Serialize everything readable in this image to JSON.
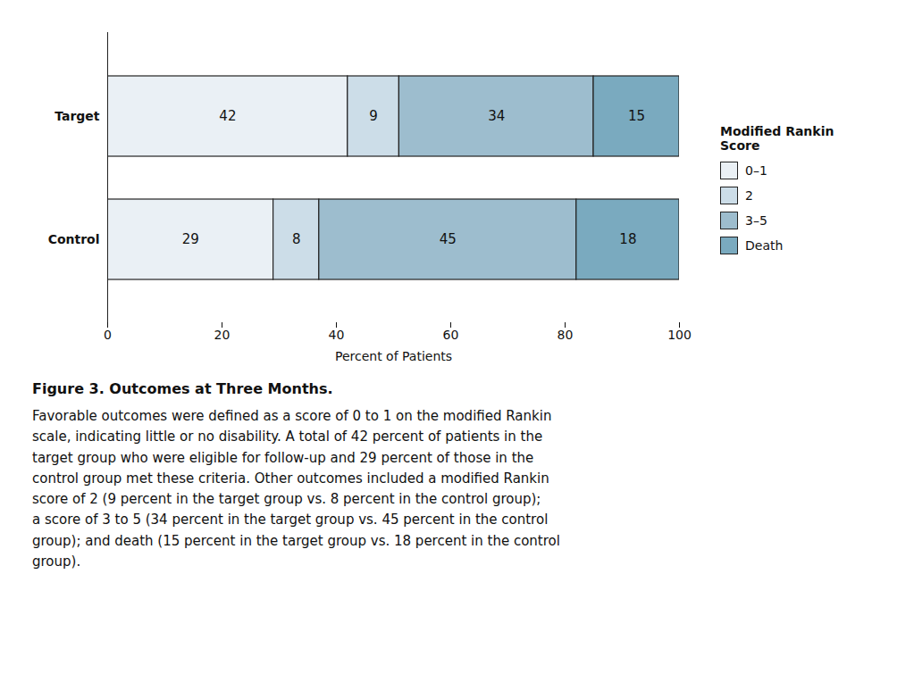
{
  "chart_data": {
    "type": "bar",
    "orientation": "horizontal",
    "stacked": true,
    "data_labels": true,
    "grid": false,
    "legend": "right",
    "legend_title": "Modified Rankin Score",
    "title": "Figure 3. Outcomes at Three Months.",
    "caption": "Favorable outcomes were defined as a score of 0 to 1 on the modified Rankin\nscale, indicating little or no disability. A total of 42 percent of patients in the\ntarget group who were eligible for follow-up and 29 percent of those in the\ncontrol group met these criteria. Other outcomes included a modified Rankin\nscore of 2 (9 percent in the target group vs. 8 percent in the control group);\na score of 3 to 5 (34 percent in the target group vs. 45 percent in the control\ngroup); and death (15 percent in the target group vs. 18 percent in the control\ngroup).",
    "categories": [
      "Target",
      "Control"
    ],
    "series": [
      {
        "name": "0–1",
        "color": "#eaf0f5",
        "values": [
          42,
          29
        ]
      },
      {
        "name": "2",
        "color": "#ccdde8",
        "values": [
          9,
          8
        ]
      },
      {
        "name": "3–5",
        "color": "#9dbdce",
        "values": [
          34,
          45
        ]
      },
      {
        "name": "Death",
        "color": "#7aaabf",
        "values": [
          15,
          18
        ]
      }
    ],
    "xlabel": "Percent of Patients",
    "xlim": [
      0,
      100
    ],
    "xticks": [
      0,
      20,
      40,
      60,
      80,
      100
    ]
  }
}
